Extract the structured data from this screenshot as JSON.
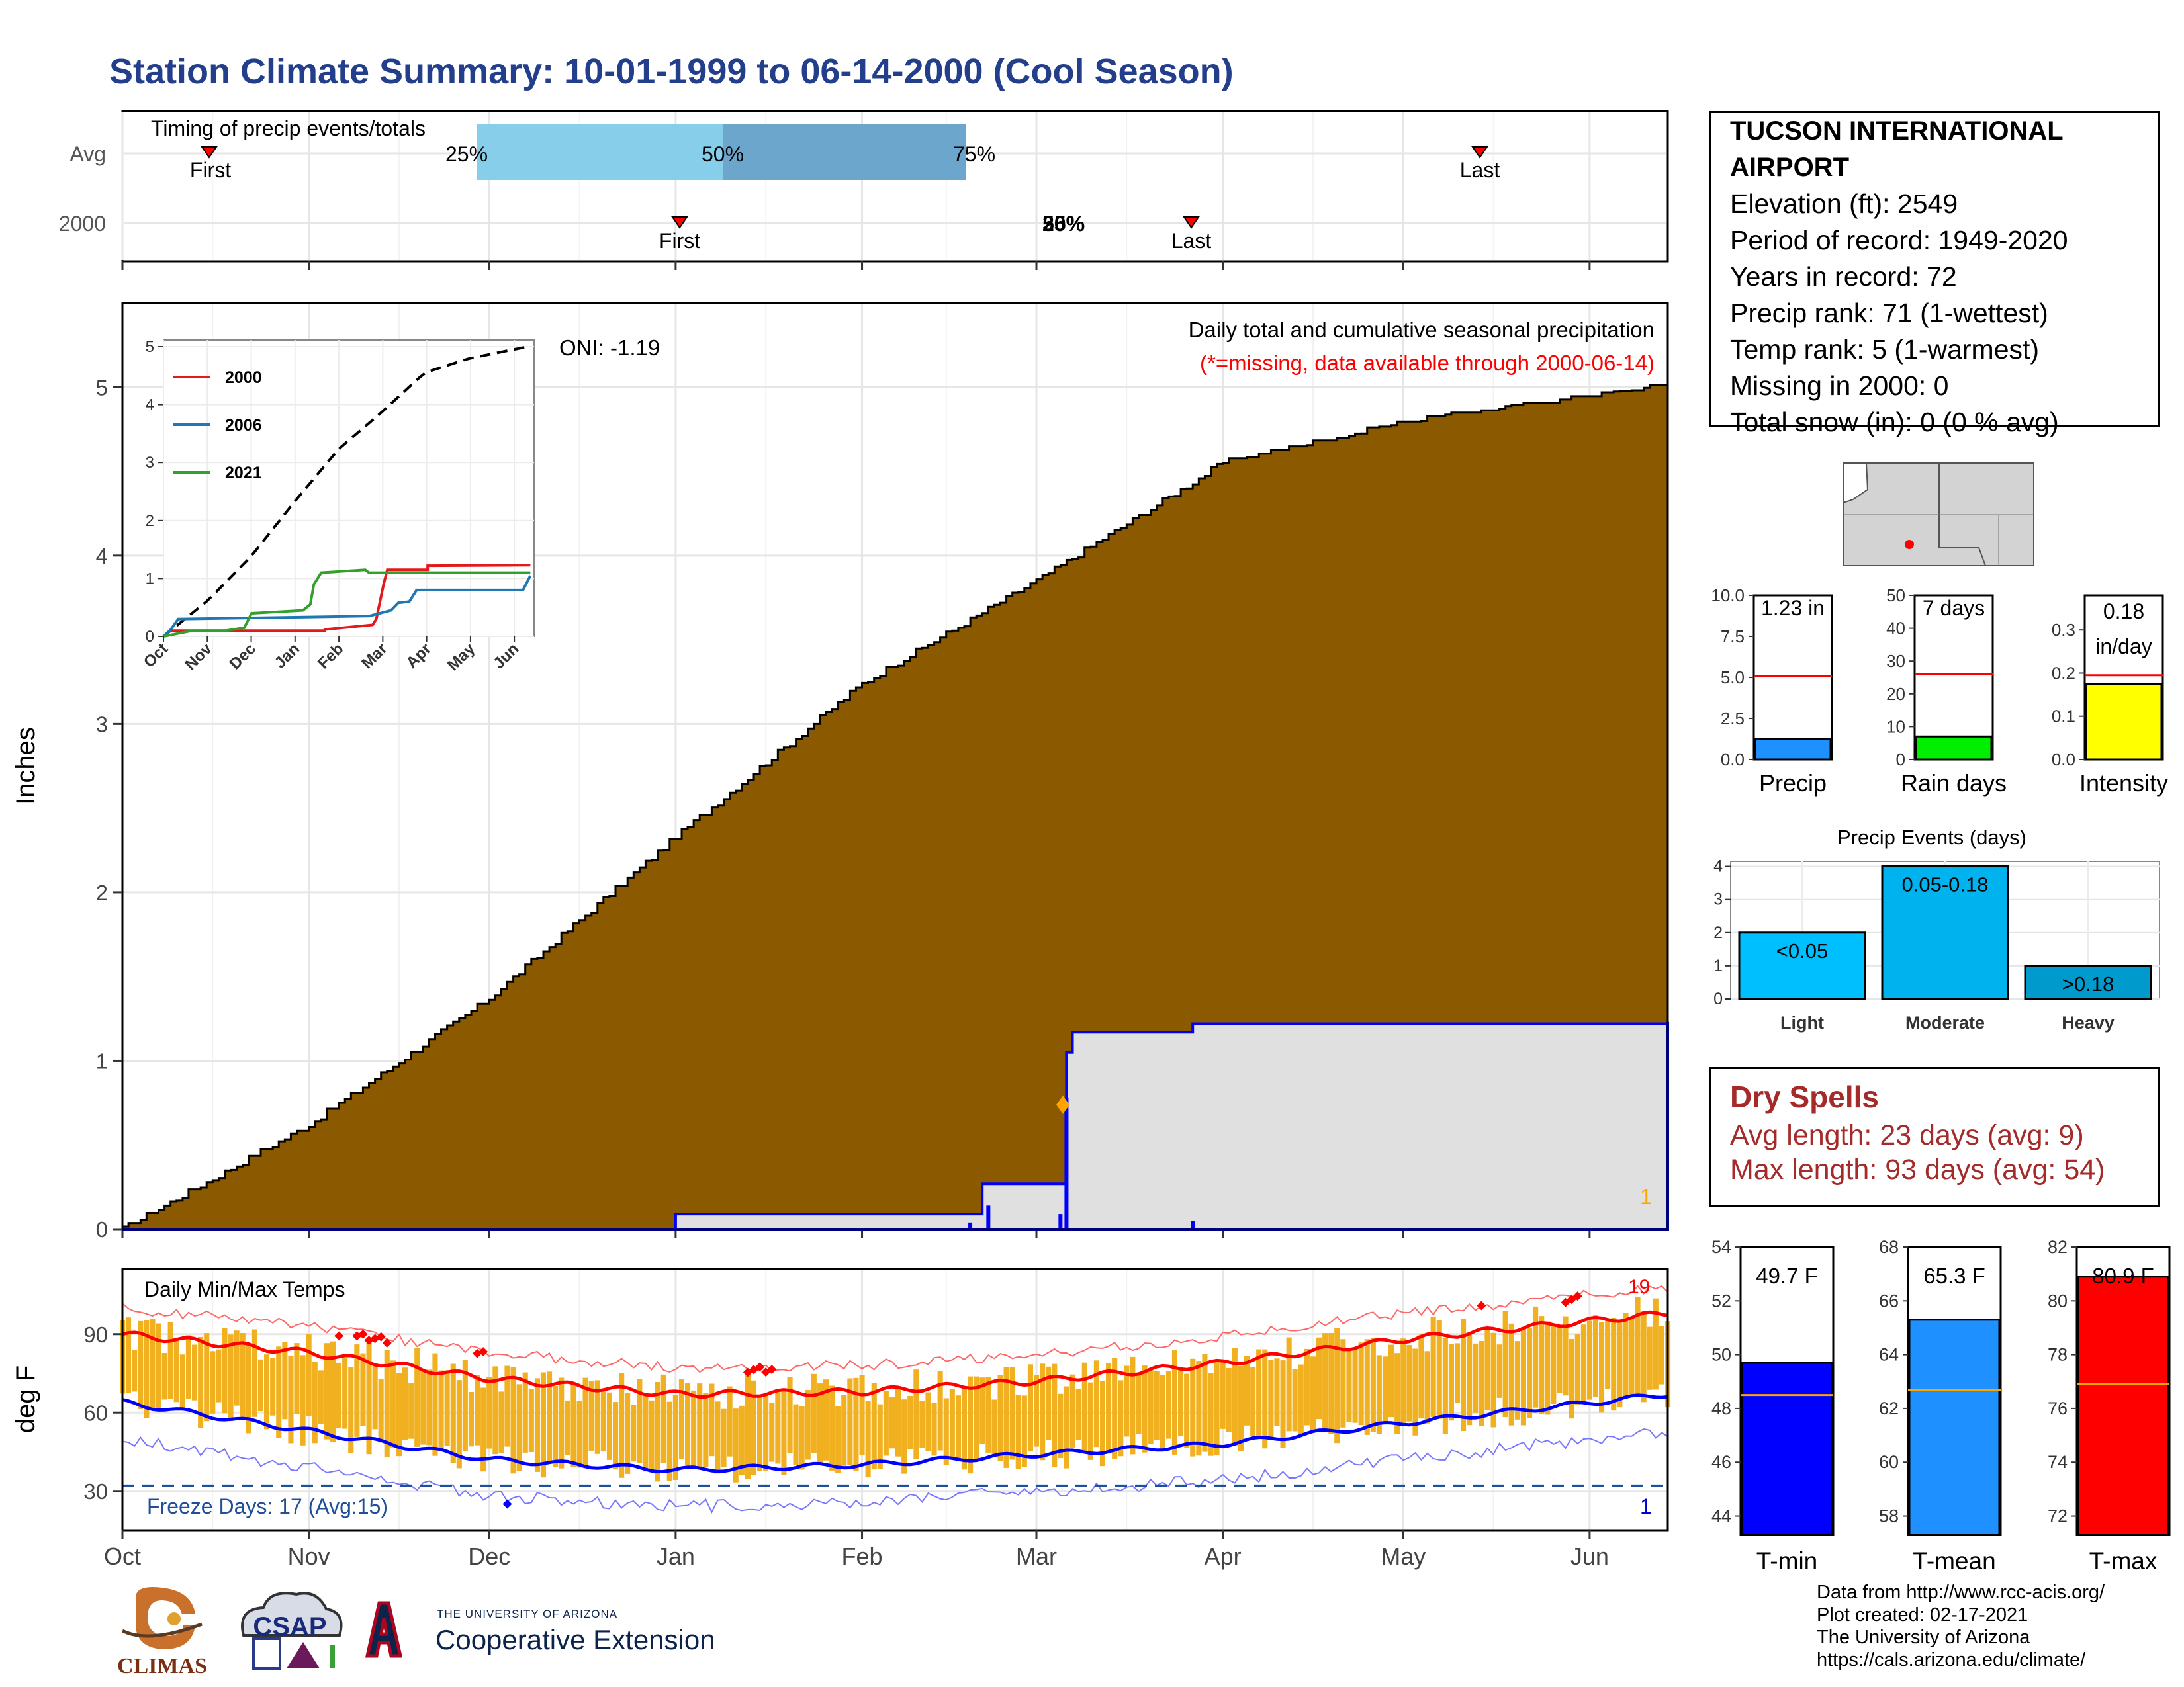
{
  "title": "Station Climate Summary: 10-01-1999 to 06-14-2000 (Cool Season)",
  "timing_panel": {
    "heading": "Timing of precip events/totals",
    "row_labels": [
      "Avg",
      "2000"
    ],
    "avg": {
      "first": "Oct 19",
      "p25": "Dec 20",
      "p50": "Feb 01",
      "p75": "Mar 18",
      "last": "May 25",
      "first_label": "First",
      "last_label": "Last",
      "p25_label": "25%",
      "p50_label": "50%",
      "p75_label": "75%"
    },
    "season_2000": {
      "first": "Jan 01",
      "last": "Mar 27",
      "overlap_label": "50%",
      "overlap_label2": "25%",
      "first_label": "First",
      "last_label": "Last"
    }
  },
  "precip_panel": {
    "heading": "Daily total and cumulative seasonal precipitation",
    "subheading": "(*=missing, data available through 2000-06-14)",
    "oni": "ONI: -1.19",
    "ylabel": "Inches",
    "yticks": [
      "0",
      "1",
      "2",
      "3",
      "4",
      "5"
    ],
    "corner_count": "1",
    "inset": {
      "yticks": [
        "0",
        "1",
        "2",
        "3",
        "4",
        "5"
      ],
      "xticks": [
        "Oct",
        "Nov",
        "Dec",
        "Jan",
        "Feb",
        "Mar",
        "Apr",
        "May",
        "Jun"
      ],
      "legend": [
        {
          "name": "2000",
          "color": "#e31a1c"
        },
        {
          "name": "2006",
          "color": "#1f78b4"
        },
        {
          "name": "2021",
          "color": "#33a02c"
        }
      ]
    }
  },
  "temp_panel": {
    "heading": "Daily Min/Max Temps",
    "ylabel": "deg F",
    "yticks": [
      "30",
      "60",
      "90"
    ],
    "freeze_label": "Freeze Days: 17 (Avg:15)",
    "record_high_count": "19",
    "record_low_count": "1",
    "xticks": [
      "Oct",
      "Nov",
      "Dec",
      "Jan",
      "Feb",
      "Mar",
      "Apr",
      "May",
      "Jun"
    ]
  },
  "station": {
    "name_line1": "TUCSON INTERNATIONAL",
    "name_line2": "AIRPORT",
    "elevation": "Elevation (ft): 2549",
    "period": "Period of record: 1949-2020",
    "years": "Years in record: 72",
    "precip_rank": "Precip rank: 71 (1-wettest)",
    "temp_rank": "Temp rank: 5 (1-warmest)",
    "missing": "Missing in 2000: 0",
    "snow": "Total snow (in): 0 (0 % avg)"
  },
  "mini_bars": [
    {
      "label": "Precip",
      "value_text": "1.23 in",
      "value": 1.23,
      "avg": 5.1,
      "ymax": 10,
      "yticks": [
        "0.0",
        "2.5",
        "5.0",
        "7.5",
        "10.0"
      ],
      "color": "#1e90ff"
    },
    {
      "label": "Rain days",
      "value_text": "7 days",
      "value": 7,
      "avg": 26,
      "ymax": 50,
      "yticks": [
        "0",
        "10",
        "20",
        "30",
        "40",
        "50"
      ],
      "color": "#00ee00"
    },
    {
      "label": "Intensity",
      "value_text": "0.18",
      "value_text2": "in/day",
      "value": 0.175,
      "avg": 0.195,
      "ymax": 0.38,
      "yticks": [
        "0.0",
        "0.1",
        "0.2",
        "0.3"
      ],
      "color": "#ffff00"
    }
  ],
  "events": {
    "title": "Precip Events (days)",
    "yticks": [
      "0",
      "1",
      "2",
      "3",
      "4"
    ],
    "categories": [
      "Light",
      "Moderate",
      "Heavy"
    ],
    "values": [
      2,
      4,
      1
    ],
    "labels": [
      "<0.05",
      "0.05-0.18",
      ">0.18"
    ],
    "colors": [
      "#00bfff",
      "#00b2ee",
      "#009acd"
    ]
  },
  "dry_spells": {
    "title": "Dry Spells",
    "avg_length": "Avg length: 23 days (avg: 9)",
    "max_length": "Max length: 93 days (avg: 54)"
  },
  "temp_bars": [
    {
      "label": "T-min",
      "value_text": "49.7 F",
      "value": 49.7,
      "avg": 48.5,
      "ymin": 43.3,
      "ymax": 54,
      "yticks": [
        "44",
        "46",
        "48",
        "50",
        "52",
        "54"
      ],
      "color": "#0000ff"
    },
    {
      "label": "T-mean",
      "value_text": "65.3 F",
      "value": 65.3,
      "avg": 62.7,
      "ymin": 57.3,
      "ymax": 68,
      "yticks": [
        "58",
        "60",
        "62",
        "64",
        "66",
        "68"
      ],
      "color": "#1e90ff"
    },
    {
      "label": "T-max",
      "value_text": "80.9 F",
      "value": 80.9,
      "avg": 76.9,
      "ymin": 71.3,
      "ymax": 82,
      "yticks": [
        "72",
        "74",
        "76",
        "78",
        "80",
        "82"
      ],
      "color": "#ff0000"
    }
  ],
  "footer": {
    "line1": "Data from http://www.rcc-acis.org/",
    "line2": "Plot created: 02-17-2021",
    "line3": "The University of Arizona",
    "line4": "https://cals.arizona.edu/climate/"
  },
  "logos": {
    "climas": "CLIMAS",
    "csap": "CSAP",
    "ua_small": "THE UNIVERSITY OF ARIZONA",
    "ua_big": "Cooperative Extension"
  },
  "chart_data": [
    {
      "type": "area",
      "title": "Daily total and cumulative seasonal precipitation",
      "ylabel": "Inches",
      "x": [
        "1999-10-01",
        "1999-11-01",
        "1999-12-01",
        "2000-01-01",
        "2000-02-01",
        "2000-03-01",
        "2000-04-01",
        "2000-05-01",
        "2000-06-14"
      ],
      "series": [
        {
          "name": "Average cumulative",
          "color": "#8b5a00",
          "values": [
            0.0,
            0.62,
            1.37,
            2.33,
            3.24,
            3.85,
            4.55,
            4.79,
            5.01
          ]
        },
        {
          "name": "2000 cumulative",
          "color": "#0000ff",
          "values": [
            0.0,
            0.0,
            0.0,
            0.09,
            0.09,
            0.27,
            1.22,
            1.23,
            1.23
          ]
        }
      ],
      "ylim": [
        0,
        5.5
      ]
    },
    {
      "type": "line",
      "title": "Daily Min/Max Temps",
      "ylabel": "deg F",
      "x": [
        "1999-10-01",
        "1999-11-01",
        "1999-12-01",
        "2000-01-01",
        "2000-02-01",
        "2000-03-01",
        "2000-04-01",
        "2000-05-01",
        "2000-06-14"
      ],
      "series": [
        {
          "name": "Avg max",
          "color": "#ff0000",
          "values": [
            90,
            83,
            73,
            67,
            68,
            72,
            79,
            88,
            98
          ]
        },
        {
          "name": "Avg min",
          "color": "#0000ff",
          "values": [
            64,
            53,
            42,
            38,
            40,
            44,
            48,
            56,
            67
          ]
        }
      ],
      "ylim": [
        15,
        115
      ]
    }
  ]
}
